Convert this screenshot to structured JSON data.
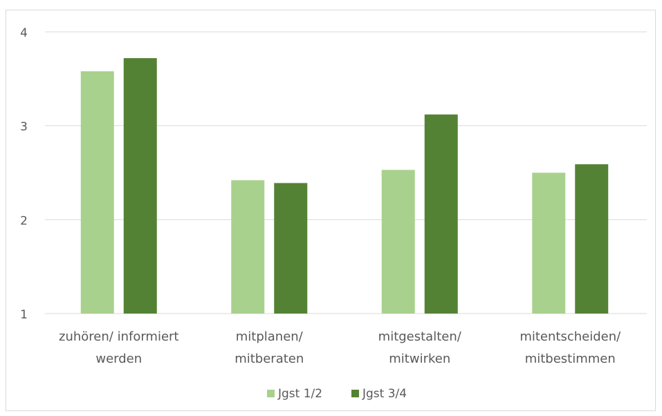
{
  "chart_data": {
    "type": "bar",
    "categories": [
      [
        "zuhören/ informiert",
        "werden"
      ],
      [
        "mitplanen/",
        "mitberaten"
      ],
      [
        "mitgestalten/",
        "mitwirken"
      ],
      [
        "mitentscheiden/",
        "mitbestimmen"
      ]
    ],
    "series": [
      {
        "name": "Jgst 1/2",
        "color": "#a9d18e",
        "values": [
          3.58,
          2.42,
          2.53,
          2.5
        ]
      },
      {
        "name": "Jgst 3/4",
        "color": "#548235",
        "values": [
          3.72,
          2.39,
          3.12,
          2.59
        ]
      }
    ],
    "ylim": [
      1,
      4
    ],
    "yticks": [
      1,
      2,
      3,
      4
    ],
    "grid": true,
    "legend": "bottom",
    "title": "",
    "xlabel": "",
    "ylabel": ""
  }
}
